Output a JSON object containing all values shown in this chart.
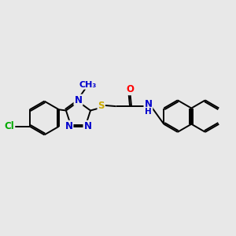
{
  "background_color": "#e8e8e8",
  "bond_color": "#000000",
  "atom_colors": {
    "N": "#0000cc",
    "O": "#ff0000",
    "S": "#ccaa00",
    "Cl": "#00aa00",
    "Me": "#0000cc"
  },
  "font_size": 8.5,
  "lw": 1.4,
  "figsize": [
    3.0,
    3.0
  ],
  "dpi": 100,
  "xlim": [
    0,
    10
  ],
  "ylim": [
    2,
    8
  ]
}
